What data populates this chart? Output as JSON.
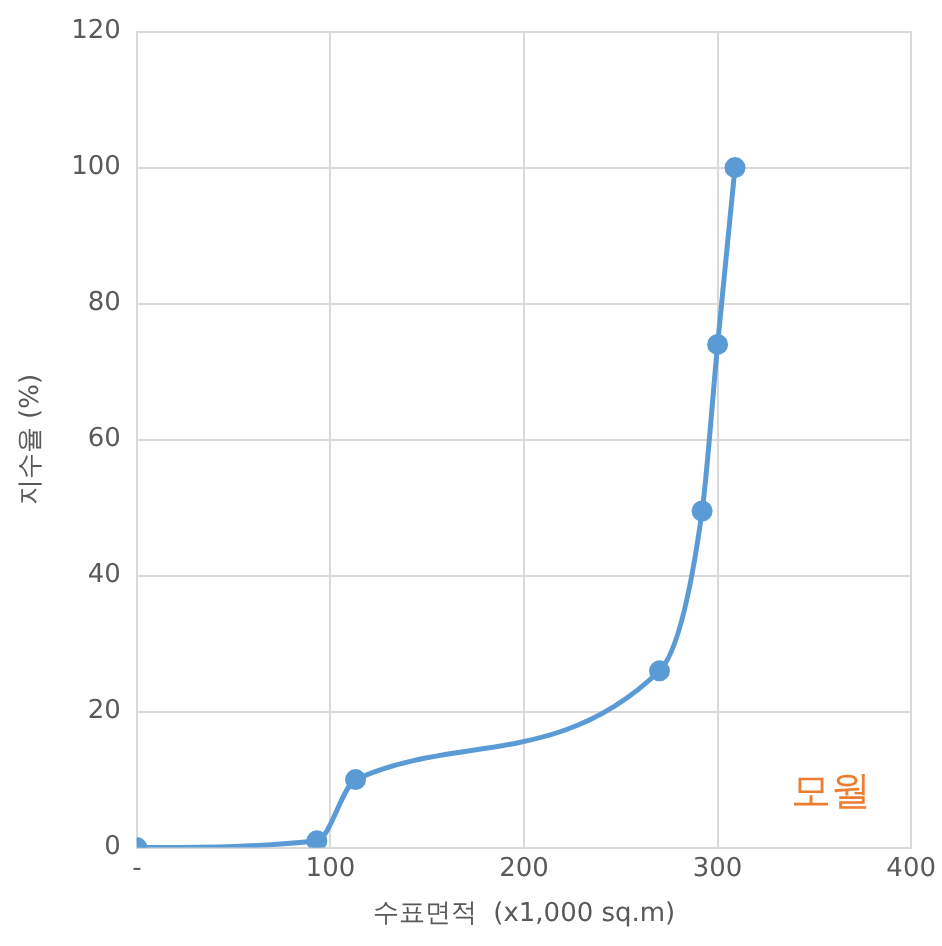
{
  "chart_data": {
    "type": "line",
    "xlabel": "수표면적  (x1,000 sq.m)",
    "ylabel": "지수율 (%)",
    "annotations": [
      "모월"
    ],
    "x": [
      0,
      93,
      113,
      270,
      292,
      300,
      309
    ],
    "series": [
      {
        "color": "#5b9bd5",
        "values": [
          0,
          1,
          10,
          26,
          49.5,
          74,
          100
        ]
      }
    ],
    "xlim": [
      0,
      400
    ],
    "xticks": [
      {
        "value": 0,
        "label": "-"
      },
      100,
      200,
      300,
      400
    ],
    "ylim": [
      0,
      120
    ],
    "yticks": [
      0,
      20,
      40,
      60,
      80,
      100,
      120
    ],
    "grid": true,
    "legend": false,
    "marker": "circle",
    "line_style": "solid"
  }
}
